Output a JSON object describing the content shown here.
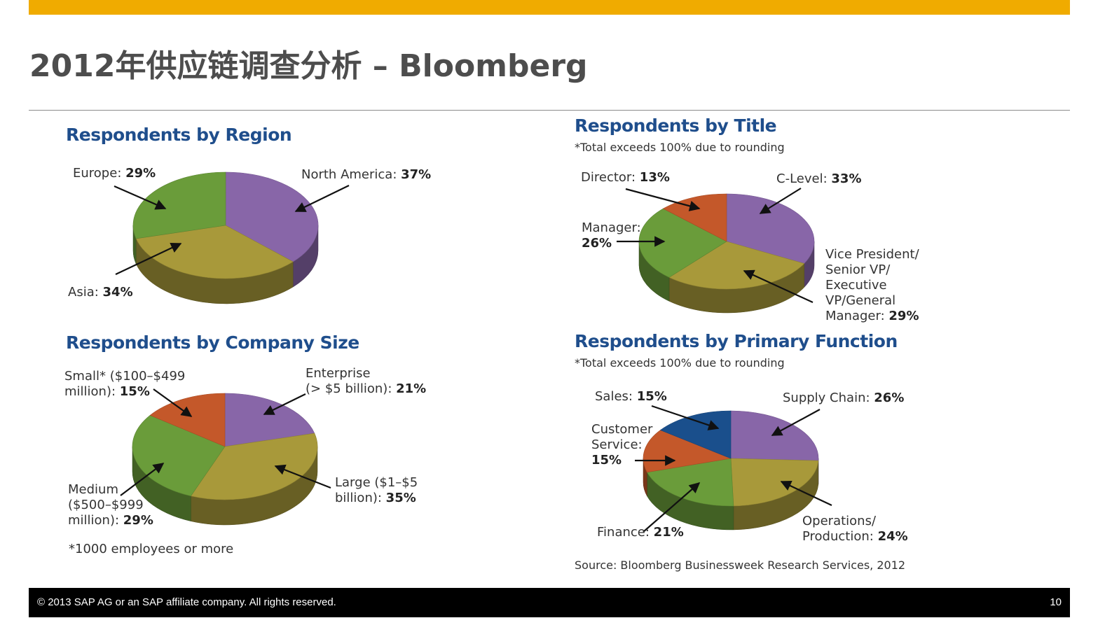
{
  "slide": {
    "title": "2012年供应链调查分析 – Bloomberg",
    "accent_color": "#f0ab00"
  },
  "footer": {
    "copyright": "© 2013 SAP AG or an SAP affiliate company. All rights reserved.",
    "page_number": "10"
  },
  "source": "Source: Bloomberg Businessweek Research Services, 2012",
  "chart_data": [
    {
      "type": "pie",
      "title": "Respondents by Region",
      "slices": [
        {
          "name": "North America",
          "value": 37,
          "display": "37%",
          "color": "#8866a8"
        },
        {
          "name": "Asia",
          "value": 34,
          "display": "34%",
          "color": "#a8993a"
        },
        {
          "name": "Europe",
          "value": 29,
          "display": "29%",
          "color": "#6a9c3a"
        }
      ]
    },
    {
      "type": "pie",
      "title": "Respondents by Title",
      "note": "*Total exceeds 100% due to rounding",
      "slices": [
        {
          "name": "C-Level",
          "value": 33,
          "display": "33%",
          "color": "#8866a8"
        },
        {
          "name": "Vice President/ Senior VP/ Executive VP/General Manager",
          "value": 29,
          "display": "29%",
          "color": "#a8993a"
        },
        {
          "name": "Manager",
          "value": 26,
          "display": "26%",
          "color": "#6a9c3a"
        },
        {
          "name": "Director",
          "value": 13,
          "display": "13%",
          "color": "#c4582a"
        }
      ],
      "label_parts": {
        "director": "Director:",
        "c_level": "C-Level:",
        "manager": "Manager:",
        "vp_lines": [
          "Vice President/",
          "Senior VP/",
          "Executive",
          "VP/General"
        ],
        "vp_last": "Manager:"
      }
    },
    {
      "type": "pie",
      "title": "Respondents by Company Size",
      "note": "*1000 employees or more",
      "slices": [
        {
          "name": "Enterprise (> $5 billion)",
          "value": 21,
          "display": "21%",
          "color": "#8866a8"
        },
        {
          "name": "Large ($1–$5 billion)",
          "value": 35,
          "display": "35%",
          "color": "#a8993a"
        },
        {
          "name": "Medium ($500–$999 million)",
          "value": 29,
          "display": "29%",
          "color": "#6a9c3a"
        },
        {
          "name": "Small* ($100–$499 million)",
          "value": 15,
          "display": "15%",
          "color": "#c4582a"
        }
      ],
      "label_parts": {
        "small_1": "Small* ($100–$499",
        "small_2": "million):",
        "enterprise_1": "Enterprise",
        "enterprise_2": "(> $5 billion):",
        "medium_1": "Medium",
        "medium_2": "($500–$999",
        "medium_3": "million):",
        "large_1": "Large ($1–$5",
        "large_2": "billion):"
      }
    },
    {
      "type": "pie",
      "title": "Respondents by Primary Function",
      "note": "*Total exceeds 100% due to rounding",
      "slices": [
        {
          "name": "Supply Chain",
          "value": 26,
          "display": "26%",
          "color": "#8866a8"
        },
        {
          "name": "Operations/ Production",
          "value": 24,
          "display": "24%",
          "color": "#a8993a"
        },
        {
          "name": "Finance",
          "value": 21,
          "display": "21%",
          "color": "#6a9c3a"
        },
        {
          "name": "Customer Service",
          "value": 15,
          "display": "15%",
          "color": "#c4582a"
        },
        {
          "name": "Sales",
          "value": 15,
          "display": "15%",
          "color": "#1a4f8c"
        }
      ],
      "label_parts": {
        "sales": "Sales:",
        "supply": "Supply Chain:",
        "cs_1": "Customer",
        "cs_2": "Service:",
        "finance": "Finance:",
        "ops_1": "Operations/",
        "ops_2": "Production:"
      }
    }
  ]
}
